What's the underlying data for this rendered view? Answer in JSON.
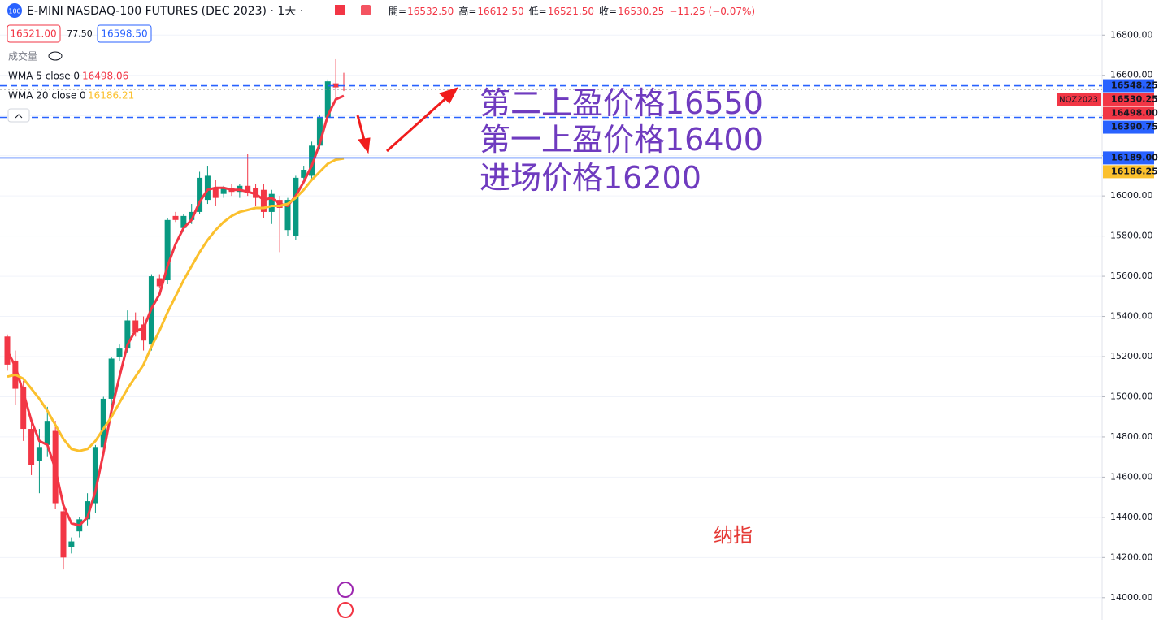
{
  "header": {
    "title": "E-MINI NASDAQ-100 FUTURES (DEC 2023) · 1天 ·",
    "symbol_badge": "100",
    "ohlc": [
      {
        "label": "開=",
        "value": "16532.50"
      },
      {
        "label": "高=",
        "value": "16612.50"
      },
      {
        "label": "低=",
        "value": "16521.50"
      },
      {
        "label": "收=",
        "value": "16530.25"
      }
    ],
    "change": "−11.25 (−0.07%)",
    "sell": "16521.00",
    "spread": "77.50",
    "buy": "16598.50",
    "volume": "成交量",
    "legend": [
      {
        "name": "WMA 5 close 0",
        "value": "16498.06"
      },
      {
        "name": "WMA 20 close 0",
        "value": "16186.21"
      }
    ]
  },
  "chart_data": {
    "type": "candlestick",
    "open": [
      15300,
      15180,
      15050,
      14840,
      14680,
      14760,
      14830,
      14430,
      14250,
      14330,
      14390,
      14470,
      14750,
      14990,
      15200,
      15240,
      15380,
      15360,
      15260,
      15590,
      15580,
      15900,
      15840,
      15880,
      15920,
      15980,
      16040,
      16010,
      16040,
      16020,
      16050,
      16040,
      16030,
      15920,
      15980,
      15830,
      15800,
      16090,
      16100,
      16250,
      16390,
      16560,
      16532.5
    ],
    "high": [
      15310,
      15230,
      15080,
      14870,
      14840,
      14950,
      14880,
      14450,
      14300,
      14400,
      14520,
      14760,
      15000,
      15200,
      15260,
      15430,
      15420,
      15400,
      15610,
      15610,
      15890,
      15920,
      15910,
      15960,
      16120,
      16150,
      16080,
      16050,
      16060,
      16060,
      16210,
      16060,
      16060,
      16030,
      16000,
      15990,
      16100,
      16150,
      16270,
      16400,
      16580,
      16680,
      16612.5
    ],
    "low": [
      15130,
      14960,
      14780,
      14610,
      14520,
      14700,
      14440,
      14140,
      14220,
      14300,
      14360,
      14420,
      14720,
      14960,
      15180,
      15220,
      15300,
      15230,
      15230,
      15540,
      15560,
      15870,
      15820,
      15860,
      15910,
      15960,
      15950,
      15990,
      16000,
      15990,
      16000,
      15950,
      15890,
      15860,
      15720,
      15800,
      15780,
      16060,
      16080,
      16230,
      16370,
      16470,
      16521.5
    ],
    "close": [
      15160,
      15040,
      14840,
      14660,
      14750,
      14880,
      14470,
      14200,
      14280,
      14390,
      14480,
      14750,
      14990,
      15190,
      15240,
      15380,
      15320,
      15280,
      15600,
      15550,
      15880,
      15880,
      15900,
      15920,
      16090,
      16100,
      15990,
      16040,
      16020,
      16050,
      16020,
      15990,
      15920,
      16010,
      15940,
      15980,
      16090,
      16130,
      16250,
      16390,
      16570,
      16540,
      16530.25
    ],
    "series": [
      {
        "name": "WMA 5 close 0",
        "color": "#f23645",
        "values": [
          15230,
          15150,
          15020,
          14880,
          14780,
          14760,
          14640,
          14460,
          14370,
          14360,
          14400,
          14530,
          14720,
          14930,
          15100,
          15260,
          15330,
          15340,
          15440,
          15510,
          15650,
          15760,
          15840,
          15880,
          15970,
          16030,
          16040,
          16040,
          16030,
          16030,
          16020,
          16010,
          15980,
          15990,
          15960,
          15950,
          16000,
          16070,
          16150,
          16260,
          16400,
          16480,
          16498.06
        ]
      },
      {
        "name": "WMA 20 close 0",
        "color": "#fbc02d",
        "values": [
          15100,
          15110,
          15090,
          15040,
          14990,
          14930,
          14860,
          14790,
          14740,
          14730,
          14740,
          14780,
          14840,
          14900,
          14970,
          15040,
          15100,
          15160,
          15250,
          15330,
          15420,
          15500,
          15580,
          15650,
          15720,
          15780,
          15830,
          15870,
          15900,
          15920,
          15930,
          15940,
          15940,
          15950,
          15950,
          15960,
          15990,
          16030,
          16080,
          16120,
          16160,
          16180,
          16186.21
        ]
      }
    ],
    "up_color": "#089981",
    "down_color": "#f23645",
    "ylim": [
      13890,
      16975
    ],
    "yticks": [
      {
        "value": 14000,
        "label": "14000.00"
      },
      {
        "value": 14200,
        "label": "14200.00"
      },
      {
        "value": 14400,
        "label": "14400.00"
      },
      {
        "value": 14600,
        "label": "14600.00"
      },
      {
        "value": 14800,
        "label": "14800.00"
      },
      {
        "value": 15000,
        "label": "15000.00"
      },
      {
        "value": 15200,
        "label": "15200.00"
      },
      {
        "value": 15400,
        "label": "15400.00"
      },
      {
        "value": 15600,
        "label": "15600.00"
      },
      {
        "value": 15800,
        "label": "15800.00"
      },
      {
        "value": 16000,
        "label": "16000.00"
      },
      {
        "value": 16200,
        "label": "16200.00"
      },
      {
        "value": 16400,
        "label": "16400.00"
      },
      {
        "value": 16600,
        "label": "16600.00"
      },
      {
        "value": 16800,
        "label": "16800.00"
      }
    ],
    "grid": true,
    "price_lines": [
      {
        "value": 16548.25,
        "label": "16548.25",
        "color": "#2962ff",
        "style": "dashed"
      },
      {
        "value": 16530.25,
        "label": "16530.25",
        "color": "#f23645",
        "style": "dotted",
        "tag": "NQZ2023"
      },
      {
        "value": 16498.0,
        "label": "16498.00",
        "color": "#f23645",
        "style": "none"
      },
      {
        "value": 16390.75,
        "label": "16390.75",
        "color": "#2962ff",
        "style": "dashed"
      },
      {
        "value": 16189.0,
        "label": "16189.00",
        "color": "#2962ff",
        "style": "solid"
      },
      {
        "value": 16186.25,
        "label": "16186.25",
        "color": "#fbc02d",
        "style": "none"
      }
    ],
    "annotations": [
      "第二上盈价格16550",
      "第一上盈价格16400",
      "进场价格16200"
    ],
    "note": "纳指"
  }
}
